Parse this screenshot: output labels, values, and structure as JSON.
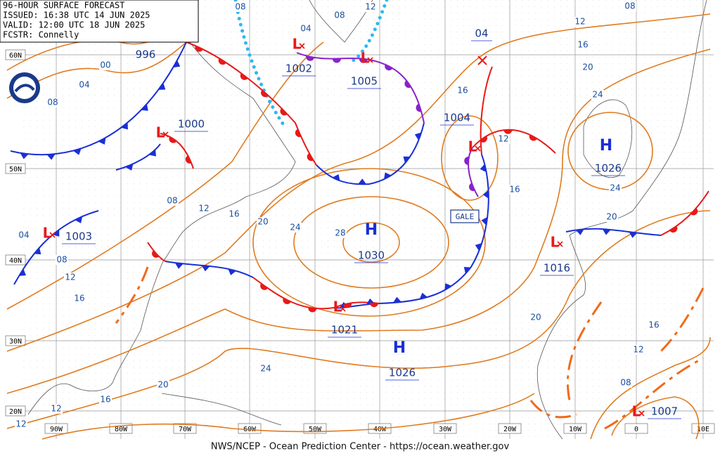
{
  "header": {
    "lines": [
      "96-HOUR SURFACE FORECAST",
      "ISSUED: 16:38 UTC 14 JUN 2025",
      "VALID:  12:00 UTC 18 JUN 2025",
      "FCSTR:  Connelly"
    ]
  },
  "centers": [
    {
      "symbol": "L",
      "pressure": "996"
    },
    {
      "symbol": "L",
      "pressure": "1002"
    },
    {
      "symbol": "L",
      "pressure": "1005"
    },
    {
      "symbol": "L",
      "pressure": "1000"
    },
    {
      "symbol": "L",
      "pressure": "1004"
    },
    {
      "symbol": "L",
      "pressure": "1003"
    },
    {
      "symbol": "H",
      "pressure": "1030"
    },
    {
      "symbol": "L",
      "pressure": "1016"
    },
    {
      "symbol": "L",
      "pressure": "1021"
    },
    {
      "symbol": "H",
      "pressure": "1026"
    },
    {
      "symbol": "H",
      "pressure": "1026"
    },
    {
      "symbol": "L",
      "pressure": "1007"
    }
  ],
  "forecast_pressure": "04",
  "isobar_labels": [
    "08",
    "08",
    "12",
    "08",
    "04",
    "00",
    "04",
    "08",
    "12",
    "16",
    "20",
    "24",
    "16",
    "12",
    "16",
    "24",
    "20",
    "08",
    "12",
    "16",
    "20",
    "24",
    "28",
    "04",
    "08",
    "12",
    "16",
    "20",
    "16",
    "12",
    "08",
    "24",
    "20",
    "16",
    "12",
    "12"
  ],
  "gale": "GALE",
  "lat_labels": [
    "60N",
    "50N",
    "40N",
    "30N",
    "20N"
  ],
  "lon_labels": [
    "90W",
    "80W",
    "70W",
    "60W",
    "50W",
    "40W",
    "30W",
    "20W",
    "10W",
    "0",
    "10E"
  ],
  "footer": "NWS/NCEP - Ocean Prediction Center - https://ocean.weather.gov"
}
